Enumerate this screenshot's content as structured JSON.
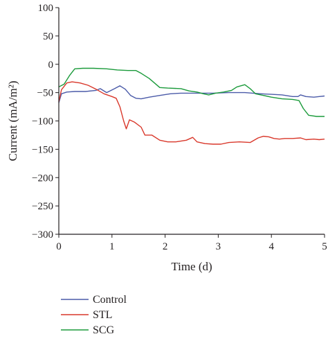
{
  "chart_data": {
    "type": "line",
    "title": "",
    "xlabel": "Time (d)",
    "ylabel": "Current (mA/m²)",
    "xlim": [
      0,
      5
    ],
    "ylim": [
      -300,
      100
    ],
    "x_ticks": [
      0,
      1,
      2,
      3,
      4,
      5
    ],
    "y_ticks": [
      100,
      50,
      0,
      -50,
      -100,
      -150,
      -200,
      -250,
      -300
    ],
    "grid": false,
    "legend_position": "bottom-left",
    "series": [
      {
        "name": "Control",
        "color": "#4a5aa8",
        "points": [
          [
            0,
            -68
          ],
          [
            0.05,
            -52
          ],
          [
            0.15,
            -49
          ],
          [
            0.3,
            -48
          ],
          [
            0.5,
            -48
          ],
          [
            0.7,
            -46
          ],
          [
            0.78,
            -43
          ],
          [
            0.9,
            -50
          ],
          [
            1.05,
            -43
          ],
          [
            1.15,
            -38
          ],
          [
            1.25,
            -44
          ],
          [
            1.35,
            -55
          ],
          [
            1.45,
            -60
          ],
          [
            1.55,
            -61
          ],
          [
            1.7,
            -58
          ],
          [
            1.9,
            -55
          ],
          [
            2.1,
            -52
          ],
          [
            2.3,
            -51
          ],
          [
            2.6,
            -51
          ],
          [
            2.9,
            -51
          ],
          [
            3.2,
            -50
          ],
          [
            3.5,
            -50
          ],
          [
            3.8,
            -52
          ],
          [
            4.0,
            -53
          ],
          [
            4.2,
            -54
          ],
          [
            4.4,
            -57
          ],
          [
            4.5,
            -57
          ],
          [
            4.55,
            -54
          ],
          [
            4.65,
            -57
          ],
          [
            4.8,
            -58
          ],
          [
            4.9,
            -57
          ],
          [
            5.0,
            -56
          ]
        ]
      },
      {
        "name": "STL",
        "color": "#d9372a",
        "points": [
          [
            0,
            -66
          ],
          [
            0.05,
            -45
          ],
          [
            0.15,
            -33
          ],
          [
            0.25,
            -31
          ],
          [
            0.4,
            -33
          ],
          [
            0.55,
            -37
          ],
          [
            0.7,
            -44
          ],
          [
            0.85,
            -52
          ],
          [
            1.0,
            -57
          ],
          [
            1.08,
            -60
          ],
          [
            1.15,
            -75
          ],
          [
            1.22,
            -100
          ],
          [
            1.27,
            -114
          ],
          [
            1.33,
            -98
          ],
          [
            1.42,
            -102
          ],
          [
            1.55,
            -111
          ],
          [
            1.62,
            -125
          ],
          [
            1.75,
            -125
          ],
          [
            1.9,
            -134
          ],
          [
            2.05,
            -137
          ],
          [
            2.2,
            -137
          ],
          [
            2.4,
            -134
          ],
          [
            2.52,
            -129
          ],
          [
            2.6,
            -137
          ],
          [
            2.75,
            -140
          ],
          [
            2.9,
            -141
          ],
          [
            3.05,
            -141
          ],
          [
            3.2,
            -138
          ],
          [
            3.4,
            -137
          ],
          [
            3.6,
            -138
          ],
          [
            3.75,
            -130
          ],
          [
            3.85,
            -127
          ],
          [
            3.95,
            -128
          ],
          [
            4.05,
            -131
          ],
          [
            4.15,
            -132
          ],
          [
            4.25,
            -131
          ],
          [
            4.4,
            -131
          ],
          [
            4.55,
            -130
          ],
          [
            4.65,
            -133
          ],
          [
            4.8,
            -132
          ],
          [
            4.9,
            -133
          ],
          [
            5.0,
            -132
          ]
        ]
      },
      {
        "name": "SCG",
        "color": "#1a9a3a",
        "points": [
          [
            0,
            -40
          ],
          [
            0.1,
            -35
          ],
          [
            0.2,
            -20
          ],
          [
            0.3,
            -8
          ],
          [
            0.45,
            -7
          ],
          [
            0.65,
            -7
          ],
          [
            0.9,
            -8
          ],
          [
            1.1,
            -10
          ],
          [
            1.3,
            -11
          ],
          [
            1.45,
            -11
          ],
          [
            1.55,
            -16
          ],
          [
            1.7,
            -25
          ],
          [
            1.8,
            -33
          ],
          [
            1.9,
            -41
          ],
          [
            2.05,
            -42
          ],
          [
            2.3,
            -43
          ],
          [
            2.45,
            -47
          ],
          [
            2.6,
            -49
          ],
          [
            2.72,
            -52
          ],
          [
            2.82,
            -54
          ],
          [
            2.95,
            -51
          ],
          [
            3.1,
            -49
          ],
          [
            3.25,
            -46
          ],
          [
            3.35,
            -40
          ],
          [
            3.5,
            -36
          ],
          [
            3.6,
            -43
          ],
          [
            3.7,
            -52
          ],
          [
            3.85,
            -55
          ],
          [
            4.0,
            -58
          ],
          [
            4.2,
            -61
          ],
          [
            4.4,
            -62
          ],
          [
            4.52,
            -64
          ],
          [
            4.6,
            -78
          ],
          [
            4.7,
            -90
          ],
          [
            4.85,
            -92
          ],
          [
            5.0,
            -92
          ]
        ]
      }
    ]
  }
}
